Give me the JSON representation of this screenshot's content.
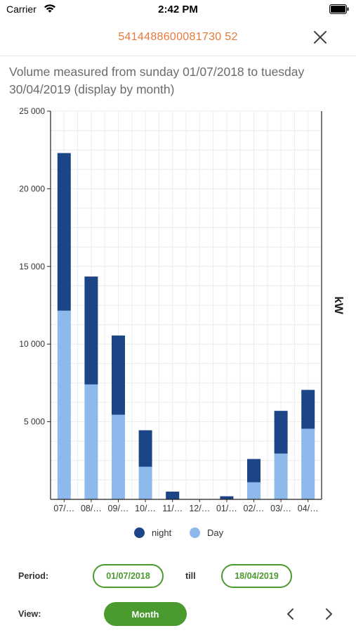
{
  "status_bar": {
    "carrier": "Carrier",
    "time": "2:42 PM"
  },
  "header": {
    "title": "5414488600081730 52",
    "title_color": "#e8793a"
  },
  "chart_title": "Volume measured from sunday 01/07/2018 to tuesday 30/04/2019 (display by month)",
  "chart_data": {
    "type": "bar",
    "stacked": true,
    "categories": [
      "07/…",
      "08/…",
      "09/…",
      "10/…",
      "11/…",
      "12/…",
      "01/…",
      "02/…",
      "03/…",
      "04/…"
    ],
    "series": [
      {
        "name": "Day",
        "color": "#8db9ec",
        "values": [
          12150,
          7400,
          5450,
          2100,
          0,
          0,
          0,
          1100,
          2950,
          4550
        ]
      },
      {
        "name": "night",
        "color": "#1c4587",
        "values": [
          10150,
          6950,
          5100,
          2350,
          500,
          0,
          200,
          1500,
          2750,
          2500
        ]
      }
    ],
    "ylabel": "kW",
    "ylim": [
      0,
      25000
    ],
    "yticks": [
      5000,
      10000,
      15000,
      20000,
      25000
    ],
    "ytick_labels": [
      "5 000",
      "10 000",
      "15 000",
      "20 000",
      "25 000"
    ],
    "legend": [
      "night",
      "Day"
    ],
    "legend_position": "bottom",
    "grid": true
  },
  "filters": {
    "period_label": "Period:",
    "start_date": "01/07/2018",
    "till_label": "till",
    "end_date": "18/04/2019",
    "view_label": "View:",
    "view_value": "Month",
    "accent_color": "#4a9a2f"
  }
}
